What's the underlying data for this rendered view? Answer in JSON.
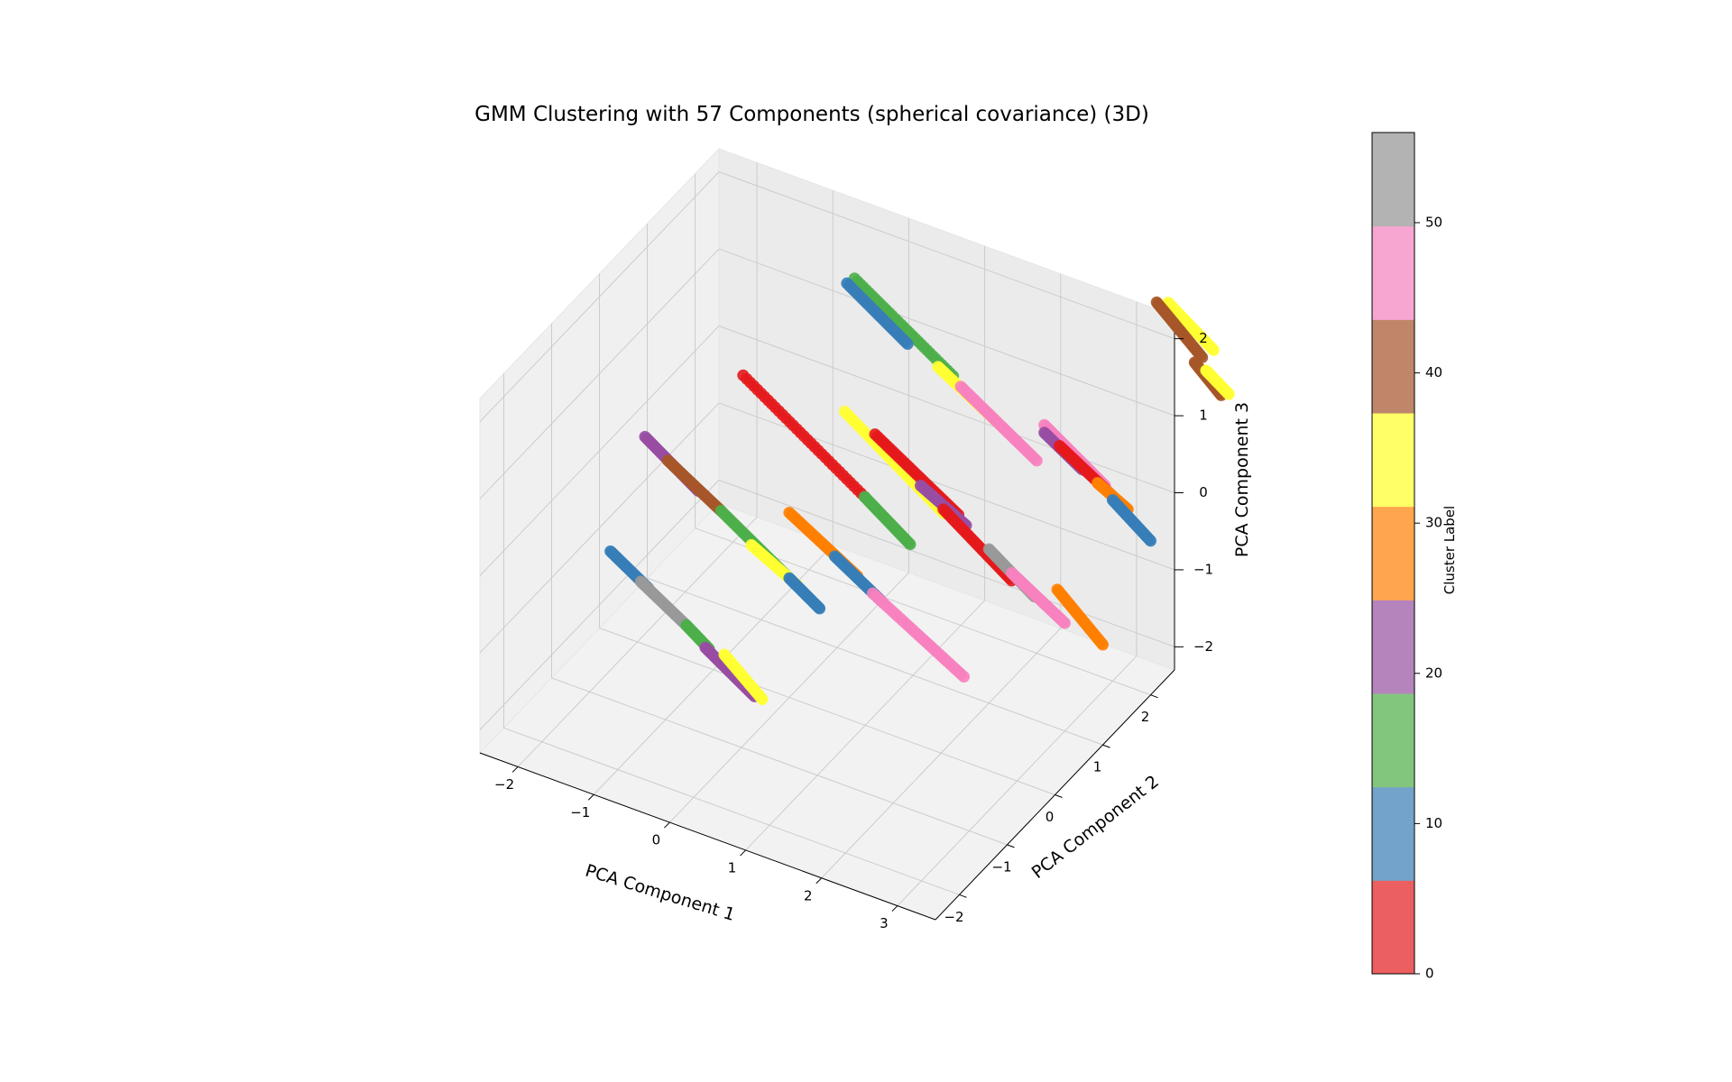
{
  "chart_data": {
    "type": "scatter",
    "title": "GMM Clustering with 57 Components (spherical covariance) (3D)",
    "projection": "3d",
    "xlabel": "PCA Component 1",
    "ylabel": "PCA Component 2",
    "zlabel": "PCA Component 3",
    "xlim": [
      -2.5,
      3.5
    ],
    "ylim": [
      -2.5,
      2.5
    ],
    "zlim": [
      -2.3,
      2.3
    ],
    "x_ticks": [
      "−2",
      "−1",
      "0",
      "1",
      "2",
      "3"
    ],
    "x_tick_values": [
      -2,
      -1,
      0,
      1,
      2,
      3
    ],
    "y_ticks": [
      "−2",
      "−1",
      "0",
      "1",
      "2"
    ],
    "y_tick_values": [
      -2,
      -1,
      0,
      1,
      2
    ],
    "z_ticks": [
      "−2",
      "−1",
      "0",
      "1",
      "2"
    ],
    "z_tick_values": [
      -2,
      -1,
      0,
      1,
      2
    ],
    "grid": true,
    "colormap": "Set1",
    "colors": [
      "#e41a1c",
      "#377eb8",
      "#4daf4a",
      "#984ea3",
      "#ff7f00",
      "#ffff33",
      "#a65628",
      "#f781bf",
      "#999999"
    ],
    "colorbar": {
      "label": "Cluster Label",
      "range": [
        0,
        56
      ],
      "ticks": [
        "0",
        "10",
        "20",
        "30",
        "40",
        "50"
      ],
      "tick_values": [
        0,
        10,
        20,
        30,
        40,
        50
      ],
      "colors": [
        "#ec5f61",
        "#73a3ca",
        "#82c67d",
        "#b584bd",
        "#ffa54d",
        "#ffff66",
        "#c0866a",
        "#f7a6d2",
        "#b3b3b3"
      ]
    },
    "series": [
      {
        "segments": [
          {
            "from": [
              -1.3,
              1.1,
              0.7
            ],
            "to": [
              0.3,
              1.1,
              -0.3
            ],
            "color_index": 0
          },
          {
            "from": [
              0.3,
              1.1,
              -0.3
            ],
            "to": [
              0.9,
              1.1,
              -0.7
            ],
            "color_index": 2
          },
          {
            "from": [
              -1.9,
              0.0,
              0.4
            ],
            "to": [
              -1.2,
              0.0,
              -0.05
            ],
            "color_index": 3
          },
          {
            "from": [
              -1.6,
              0.0,
              0.2
            ],
            "to": [
              -0.9,
              0.0,
              -0.2
            ],
            "color_index": 6
          },
          {
            "from": [
              -0.9,
              0.0,
              -0.2
            ],
            "to": [
              0.0,
              0.0,
              -0.75
            ],
            "color_index": 2
          },
          {
            "from": [
              -0.5,
              0.0,
              -0.5
            ],
            "to": [
              0.1,
              0.0,
              -0.8
            ],
            "color_index": 5
          },
          {
            "from": [
              0.0,
              0.0,
              -0.75
            ],
            "to": [
              0.4,
              0.0,
              -1.0
            ],
            "color_index": 1
          },
          {
            "from": [
              -1.6,
              -1.2,
              -0.2
            ],
            "to": [
              -1.1,
              -1.2,
              -0.5
            ],
            "color_index": 1
          },
          {
            "from": [
              -1.2,
              -1.2,
              -0.45
            ],
            "to": [
              -0.6,
              -1.2,
              -0.8
            ],
            "color_index": 8
          },
          {
            "from": [
              -0.6,
              -1.2,
              -0.8
            ],
            "to": [
              -0.3,
              -1.2,
              -1.0
            ],
            "color_index": 2
          },
          {
            "from": [
              -0.35,
              -1.2,
              -1.0
            ],
            "to": [
              0.3,
              -1.2,
              -1.4
            ],
            "color_index": 3
          },
          {
            "from": [
              -0.1,
              -1.2,
              -1.0
            ],
            "to": [
              0.4,
              -1.2,
              -1.4
            ],
            "color_index": 5
          }
        ]
      },
      {
        "segments": [
          {
            "from": [
              -0.4,
              2.0,
              1.7
            ],
            "to": [
              0.9,
              2.0,
              0.9
            ],
            "color_index": 2
          },
          {
            "from": [
              -0.5,
              2.0,
              1.6
            ],
            "to": [
              0.3,
              2.0,
              1.1
            ],
            "color_index": 1
          },
          {
            "from": [
              0.7,
              2.0,
              0.95
            ],
            "to": [
              1.5,
              2.0,
              0.5
            ],
            "color_index": 5
          },
          {
            "from": [
              1.0,
              2.0,
              0.8
            ],
            "to": [
              2.0,
              2.0,
              0.2
            ],
            "color_index": 7
          },
          {
            "from": [
              0.1,
              1.0,
              0.8
            ],
            "to": [
              1.4,
              1.0,
              -0.05
            ],
            "color_index": 5
          },
          {
            "from": [
              0.5,
              1.0,
              0.65
            ],
            "to": [
              1.6,
              1.0,
              0.0
            ],
            "color_index": 0
          },
          {
            "from": [
              1.1,
              1.0,
              0.2
            ],
            "to": [
              1.7,
              1.0,
              -0.1
            ],
            "color_index": 3
          },
          {
            "from": [
              1.4,
              1.0,
              0.0
            ],
            "to": [
              2.3,
              1.0,
              -0.6
            ],
            "color_index": 0
          },
          {
            "from": [
              2.0,
              1.0,
              -0.3
            ],
            "to": [
              2.6,
              1.0,
              -0.7
            ],
            "color_index": 8
          },
          {
            "from": [
              2.3,
              1.0,
              -0.5
            ],
            "to": [
              3.0,
              1.0,
              -0.9
            ],
            "color_index": 7
          },
          {
            "from": [
              0.0,
              0.0,
              0.1
            ],
            "to": [
              0.9,
              0.0,
              -0.4
            ],
            "color_index": 4
          },
          {
            "from": [
              0.6,
              0.0,
              -0.25
            ],
            "to": [
              1.2,
              0.0,
              -0.6
            ],
            "color_index": 1
          },
          {
            "from": [
              1.1,
              0.0,
              -0.55
            ],
            "to": [
              2.3,
              0.0,
              -1.2
            ],
            "color_index": 7
          }
        ]
      },
      {
        "segments": [
          {
            "from": [
              2.1,
              2.0,
              0.7
            ],
            "to": [
              2.9,
              2.0,
              0.2
            ],
            "color_index": 7
          },
          {
            "from": [
              2.1,
              2.0,
              0.6
            ],
            "to": [
              2.6,
              2.0,
              0.3
            ],
            "color_index": 3
          },
          {
            "from": [
              2.3,
              2.0,
              0.5
            ],
            "to": [
              3.0,
              2.0,
              0.1
            ],
            "color_index": 0
          },
          {
            "from": [
              2.8,
              2.0,
              0.2
            ],
            "to": [
              3.2,
              2.0,
              0.0
            ],
            "color_index": 4
          },
          {
            "from": [
              3.0,
              2.0,
              0.05
            ],
            "to": [
              3.5,
              2.0,
              -0.3
            ],
            "color_index": 1
          },
          {
            "from": [
              2.9,
              1.0,
              -0.5
            ],
            "to": [
              3.5,
              1.0,
              -1.0
            ],
            "color_index": 4
          },
          {
            "from": [
              3.1,
              3.0,
              2.0
            ],
            "to": [
              3.7,
              3.0,
              1.6
            ],
            "color_index": 5
          },
          {
            "from": [
              2.95,
              3.0,
              1.95
            ],
            "to": [
              3.55,
              3.0,
              1.45
            ],
            "color_index": 6
          },
          {
            "from": [
              3.45,
              3.0,
              1.35
            ],
            "to": [
              3.8,
              3.0,
              1.05
            ],
            "color_index": 6
          },
          {
            "from": [
              3.6,
              3.0,
              1.3
            ],
            "to": [
              3.9,
              3.0,
              1.1
            ],
            "color_index": 5
          }
        ]
      }
    ]
  }
}
